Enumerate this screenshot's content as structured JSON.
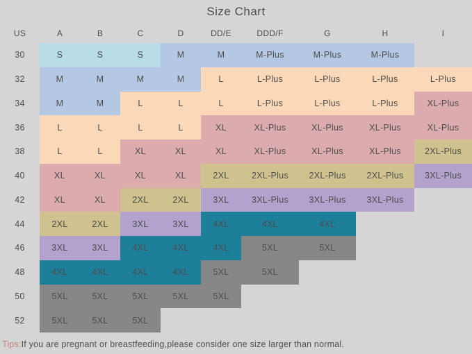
{
  "title": "Size Chart",
  "tip": {
    "accent": "Tips:",
    "text": "If you are pregnant or breastfeeding,please consider one size larger than normal."
  },
  "colors": {
    "bg": "#d5d5d5",
    "cyan": "#b8dde9",
    "periwinkle": "#b5c8e3",
    "peach": "#fad8b8",
    "rose": "#dcabae",
    "olive": "#cfc28e",
    "purple": "#b2a2cd",
    "teal": "#1e7f9b",
    "gray": "#878787",
    "text": "#4d4d4d",
    "tips_accent": "#c57f7f"
  },
  "chart_data": {
    "type": "table",
    "title": "Size Chart",
    "columns": [
      "US",
      "A",
      "B",
      "C",
      "D",
      "DD/E",
      "DDD/F",
      "G",
      "H",
      "I"
    ],
    "rows": [
      {
        "us": "30",
        "cells": [
          {
            "label": "S",
            "color": "cyan"
          },
          {
            "label": "S",
            "color": "cyan"
          },
          {
            "label": "S",
            "color": "cyan"
          },
          {
            "label": "M",
            "color": "periwinkle"
          },
          {
            "label": "M",
            "color": "periwinkle"
          },
          {
            "label": "M-Plus",
            "color": "periwinkle"
          },
          {
            "label": "M-Plus",
            "color": "periwinkle"
          },
          {
            "label": "M-Plus",
            "color": "periwinkle"
          },
          {
            "label": "",
            "color": "none"
          }
        ]
      },
      {
        "us": "32",
        "cells": [
          {
            "label": "M",
            "color": "periwinkle"
          },
          {
            "label": "M",
            "color": "periwinkle"
          },
          {
            "label": "M",
            "color": "periwinkle"
          },
          {
            "label": "M",
            "color": "periwinkle"
          },
          {
            "label": "L",
            "color": "peach"
          },
          {
            "label": "L-Plus",
            "color": "peach"
          },
          {
            "label": "L-Plus",
            "color": "peach"
          },
          {
            "label": "L-Plus",
            "color": "peach"
          },
          {
            "label": "L-Plus",
            "color": "peach"
          }
        ]
      },
      {
        "us": "34",
        "cells": [
          {
            "label": "M",
            "color": "periwinkle"
          },
          {
            "label": "M",
            "color": "periwinkle"
          },
          {
            "label": "L",
            "color": "peach"
          },
          {
            "label": "L",
            "color": "peach"
          },
          {
            "label": "L",
            "color": "peach"
          },
          {
            "label": "L-Plus",
            "color": "peach"
          },
          {
            "label": "L-Plus",
            "color": "peach"
          },
          {
            "label": "L-Plus",
            "color": "peach"
          },
          {
            "label": "XL-Plus",
            "color": "rose"
          }
        ]
      },
      {
        "us": "36",
        "cells": [
          {
            "label": "L",
            "color": "peach"
          },
          {
            "label": "L",
            "color": "peach"
          },
          {
            "label": "L",
            "color": "peach"
          },
          {
            "label": "L",
            "color": "peach"
          },
          {
            "label": "XL",
            "color": "rose"
          },
          {
            "label": "XL-Plus",
            "color": "rose"
          },
          {
            "label": "XL-Plus",
            "color": "rose"
          },
          {
            "label": "XL-Plus",
            "color": "rose"
          },
          {
            "label": "XL-Plus",
            "color": "rose"
          }
        ]
      },
      {
        "us": "38",
        "cells": [
          {
            "label": "L",
            "color": "peach"
          },
          {
            "label": "L",
            "color": "peach"
          },
          {
            "label": "XL",
            "color": "rose"
          },
          {
            "label": "XL",
            "color": "rose"
          },
          {
            "label": "XL",
            "color": "rose"
          },
          {
            "label": "XL-Plus",
            "color": "rose"
          },
          {
            "label": "XL-Plus",
            "color": "rose"
          },
          {
            "label": "XL-Plus",
            "color": "rose"
          },
          {
            "label": "2XL-Plus",
            "color": "olive"
          }
        ]
      },
      {
        "us": "40",
        "cells": [
          {
            "label": "XL",
            "color": "rose"
          },
          {
            "label": "XL",
            "color": "rose"
          },
          {
            "label": "XL",
            "color": "rose"
          },
          {
            "label": "XL",
            "color": "rose"
          },
          {
            "label": "2XL",
            "color": "olive"
          },
          {
            "label": "2XL-Plus",
            "color": "olive"
          },
          {
            "label": "2XL-Plus",
            "color": "olive"
          },
          {
            "label": "2XL-Plus",
            "color": "olive"
          },
          {
            "label": "3XL-Plus",
            "color": "purple"
          }
        ]
      },
      {
        "us": "42",
        "cells": [
          {
            "label": "XL",
            "color": "rose"
          },
          {
            "label": "XL",
            "color": "rose"
          },
          {
            "label": "2XL",
            "color": "olive"
          },
          {
            "label": "2XL",
            "color": "olive"
          },
          {
            "label": "3XL",
            "color": "purple"
          },
          {
            "label": "3XL-Plus",
            "color": "purple"
          },
          {
            "label": "3XL-Plus",
            "color": "purple"
          },
          {
            "label": "3XL-Plus",
            "color": "purple"
          },
          {
            "label": "",
            "color": "none"
          }
        ]
      },
      {
        "us": "44",
        "cells": [
          {
            "label": "2XL",
            "color": "olive"
          },
          {
            "label": "2XL",
            "color": "olive"
          },
          {
            "label": "3XL",
            "color": "purple"
          },
          {
            "label": "3XL",
            "color": "purple"
          },
          {
            "label": "4XL",
            "color": "teal"
          },
          {
            "label": "4XL",
            "color": "teal"
          },
          {
            "label": "4XL",
            "color": "teal"
          },
          {
            "label": "",
            "color": "none"
          },
          {
            "label": "",
            "color": "none"
          }
        ]
      },
      {
        "us": "46",
        "cells": [
          {
            "label": "3XL",
            "color": "purple"
          },
          {
            "label": "3XL",
            "color": "purple"
          },
          {
            "label": "4XL",
            "color": "teal"
          },
          {
            "label": "4XL",
            "color": "teal"
          },
          {
            "label": "4XL",
            "color": "teal"
          },
          {
            "label": "5XL",
            "color": "gray"
          },
          {
            "label": "5XL",
            "color": "gray"
          },
          {
            "label": "",
            "color": "none"
          },
          {
            "label": "",
            "color": "none"
          }
        ]
      },
      {
        "us": "48",
        "cells": [
          {
            "label": "4XL",
            "color": "teal"
          },
          {
            "label": "4XL",
            "color": "teal"
          },
          {
            "label": "4XL",
            "color": "teal"
          },
          {
            "label": "4XL",
            "color": "teal"
          },
          {
            "label": "5XL",
            "color": "gray"
          },
          {
            "label": "5XL",
            "color": "gray"
          },
          {
            "label": "",
            "color": "none"
          },
          {
            "label": "",
            "color": "none"
          },
          {
            "label": "",
            "color": "none"
          }
        ]
      },
      {
        "us": "50",
        "cells": [
          {
            "label": "5XL",
            "color": "gray"
          },
          {
            "label": "5XL",
            "color": "gray"
          },
          {
            "label": "5XL",
            "color": "gray"
          },
          {
            "label": "5XL",
            "color": "gray"
          },
          {
            "label": "5XL",
            "color": "gray"
          },
          {
            "label": "",
            "color": "none"
          },
          {
            "label": "",
            "color": "none"
          },
          {
            "label": "",
            "color": "none"
          },
          {
            "label": "",
            "color": "none"
          }
        ]
      },
      {
        "us": "52",
        "cells": [
          {
            "label": "5XL",
            "color": "gray"
          },
          {
            "label": "5XL",
            "color": "gray"
          },
          {
            "label": "5XL",
            "color": "gray"
          },
          {
            "label": "",
            "color": "none"
          },
          {
            "label": "",
            "color": "none"
          },
          {
            "label": "",
            "color": "none"
          },
          {
            "label": "",
            "color": "none"
          },
          {
            "label": "",
            "color": "none"
          },
          {
            "label": "",
            "color": "none"
          }
        ]
      }
    ]
  }
}
